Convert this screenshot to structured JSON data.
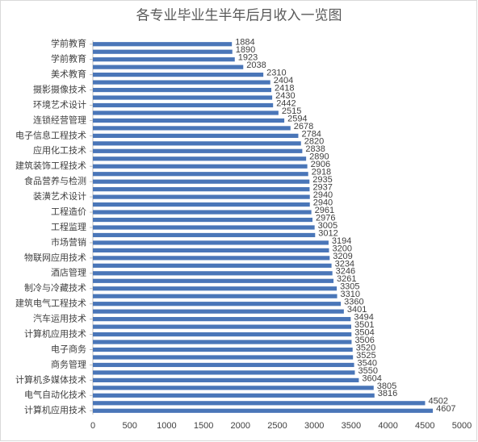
{
  "chart_data": {
    "type": "barh",
    "title": "各专业毕业生半年后月收入一览图",
    "categories": [
      "学前教育",
      null,
      "学前教育",
      null,
      "美术教育",
      null,
      "摄影摄像技术",
      null,
      "环境艺术设计",
      null,
      "连锁经营管理",
      null,
      "电子信息工程技术",
      null,
      "应用化工技术",
      null,
      "建筑装饰工程技术",
      null,
      "食品营养与检测",
      null,
      "装潢艺术设计",
      null,
      "工程造价",
      null,
      "工程监理",
      null,
      "市场营销",
      null,
      "物联网应用技术",
      null,
      "酒店管理",
      null,
      "制冷与冷藏技术",
      null,
      "建筑电气工程技术",
      null,
      "汽车运用技术",
      null,
      "计算机应用技术",
      null,
      "电子商务",
      null,
      "商务管理",
      null,
      "计算机多媒体技术",
      null,
      "电气自动化技术",
      null,
      "计算机应用技术"
    ],
    "values": [
      1884,
      1890,
      1923,
      2038,
      2310,
      2404,
      2418,
      2430,
      2442,
      2515,
      2594,
      2678,
      2784,
      2820,
      2838,
      2890,
      2906,
      2918,
      2935,
      2937,
      2940,
      2940,
      2961,
      2976,
      3005,
      3012,
      3194,
      3200,
      3209,
      3234,
      3246,
      3261,
      3305,
      3310,
      3360,
      3401,
      3494,
      3501,
      3504,
      3506,
      3520,
      3525,
      3540,
      3550,
      3604,
      3805,
      3816,
      4502,
      4607
    ],
    "color": "#4a76b8",
    "xlim": [
      0,
      5000
    ],
    "xticks": [
      0,
      500,
      1000,
      1500,
      2000,
      2500,
      3000,
      3500,
      4000,
      4500,
      5000
    ],
    "grid": false
  }
}
